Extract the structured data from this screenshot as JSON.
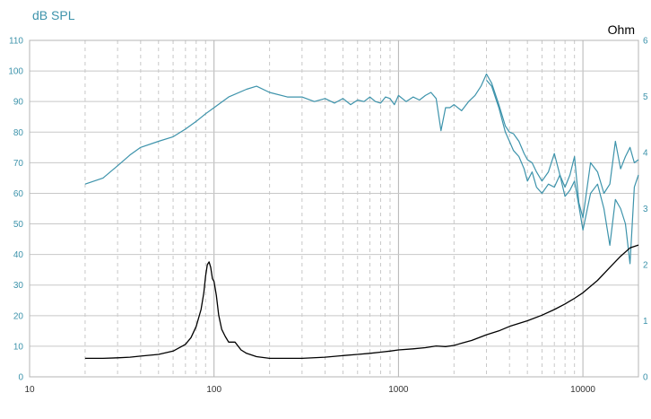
{
  "chart_data": {
    "type": "line",
    "title": "",
    "left_axis_label": "dB SPL",
    "right_axis_label": "Ohm",
    "x_scale": "log",
    "xlim": [
      10,
      20000
    ],
    "ylim_left": [
      0,
      110
    ],
    "ylim_right": [
      0,
      6
    ],
    "x_tick_labels": [
      "10",
      "100",
      "1000",
      "10000"
    ],
    "x_tick_values": [
      10,
      100,
      1000,
      10000
    ],
    "y_left_ticks": [
      0,
      10,
      20,
      30,
      40,
      50,
      60,
      70,
      80,
      90,
      100,
      110
    ],
    "y_right_ticks": [
      0,
      1,
      2,
      3,
      4,
      5,
      6
    ],
    "grid": true,
    "colors": {
      "spl": "#3d93ab",
      "impedance": "#000000",
      "grid": "#c8c8c8",
      "left_axis": "#3d93ab",
      "right_axis": "#000000"
    },
    "series": [
      {
        "axis": "left",
        "color": "#3d93ab",
        "x": [
          20,
          25,
          30,
          35,
          40,
          50,
          60,
          70,
          80,
          90,
          100,
          120,
          150,
          170,
          200,
          250,
          300,
          350,
          400,
          450,
          500,
          550,
          600,
          650,
          700,
          750,
          800,
          850,
          900,
          950,
          1000,
          1100,
          1200,
          1300,
          1400,
          1500,
          1600,
          1700,
          1800,
          1900,
          2000,
          2200,
          2400,
          2600,
          2800,
          3000,
          3200,
          3500,
          3800,
          4000,
          4200,
          4500,
          4800,
          5000,
          5300,
          5600,
          6000,
          6500,
          7000,
          7500,
          8000,
          8500,
          9000,
          9500,
          10000,
          11000,
          12000,
          13000,
          14000,
          15000,
          16000,
          17000,
          18000,
          19000,
          20000
        ],
        "values": [
          63,
          65,
          69,
          72.5,
          75,
          77,
          78.5,
          81,
          83.5,
          86,
          88,
          91.5,
          94,
          95,
          93,
          91.5,
          91.5,
          90,
          91,
          89.5,
          91,
          89,
          90.5,
          90,
          91.5,
          90,
          89.5,
          91.5,
          91,
          89,
          92,
          90,
          91.5,
          90.5,
          92,
          93,
          91,
          80.5,
          88,
          88,
          89,
          87,
          90,
          92,
          95,
          99,
          96,
          89,
          82,
          80,
          79.5,
          77,
          73,
          71,
          70,
          67,
          64,
          67,
          73,
          66,
          62,
          66,
          72,
          57,
          52,
          70,
          67,
          60,
          63,
          77,
          68,
          72,
          75,
          70,
          71
        ]
      },
      {
        "axis": "left",
        "color": "#3d93ab",
        "x": [
          3000,
          3200,
          3500,
          3800,
          4000,
          4200,
          4500,
          4800,
          5000,
          5300,
          5600,
          6000,
          6500,
          7000,
          7500,
          8000,
          8500,
          9000,
          9500,
          10000,
          11000,
          12000,
          13000,
          14000,
          15000,
          16000,
          17000,
          18000,
          19000,
          20000
        ],
        "values": [
          97,
          95,
          88,
          80,
          77,
          74,
          72,
          68,
          64,
          67,
          62,
          60,
          63,
          62,
          66,
          59,
          61,
          64,
          56,
          48,
          60,
          63,
          55,
          43,
          58,
          55,
          50,
          37,
          62,
          66
        ]
      },
      {
        "axis": "right",
        "color": "#000000",
        "x": [
          20,
          25,
          30,
          35,
          40,
          50,
          60,
          70,
          75,
          80,
          85,
          88,
          90,
          92,
          94,
          96,
          98,
          100,
          103,
          106,
          110,
          115,
          120,
          130,
          140,
          150,
          170,
          200,
          250,
          300,
          400,
          500,
          600,
          700,
          800,
          900,
          1000,
          1200,
          1400,
          1600,
          1800,
          2000,
          2200,
          2500,
          3000,
          3500,
          4000,
          5000,
          6000,
          7000,
          8000,
          9000,
          10000,
          12000,
          14000,
          16000,
          18000,
          20000
        ],
        "values": [
          0.33,
          0.33,
          0.34,
          0.35,
          0.37,
          0.4,
          0.46,
          0.58,
          0.7,
          0.9,
          1.2,
          1.5,
          1.8,
          2.0,
          2.05,
          1.95,
          1.75,
          1.7,
          1.45,
          1.1,
          0.85,
          0.72,
          0.62,
          0.62,
          0.48,
          0.42,
          0.36,
          0.33,
          0.33,
          0.33,
          0.35,
          0.38,
          0.4,
          0.42,
          0.44,
          0.46,
          0.48,
          0.5,
          0.52,
          0.55,
          0.54,
          0.56,
          0.6,
          0.65,
          0.75,
          0.82,
          0.9,
          1.0,
          1.1,
          1.2,
          1.3,
          1.4,
          1.5,
          1.72,
          1.95,
          2.15,
          2.3,
          2.35
        ]
      }
    ]
  }
}
